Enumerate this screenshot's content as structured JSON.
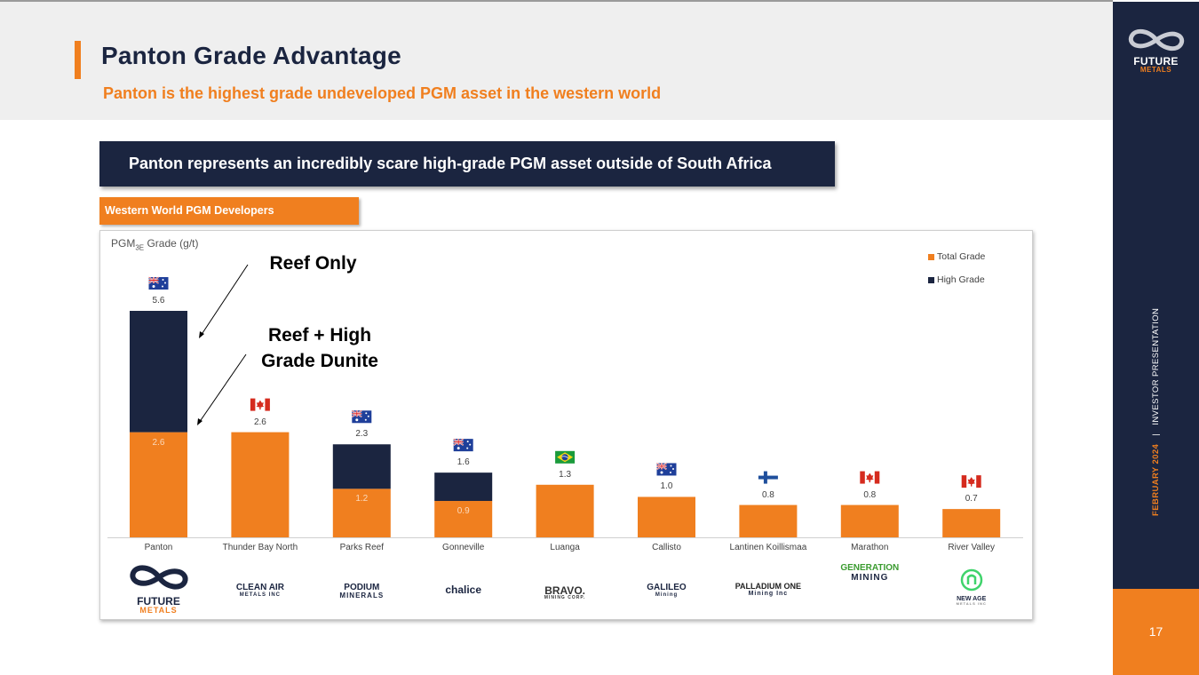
{
  "header": {
    "title": "Panton Grade Advantage",
    "subtitle": "Panton is the highest grade undeveloped PGM asset in the western world"
  },
  "sidebar": {
    "logo_line1": "FUTURE",
    "logo_line2": "METALS",
    "date": "FEBRUARY 2024",
    "separator": "|",
    "doc_type": "INVESTOR PRESENTATION",
    "page_number": "17"
  },
  "banner": {
    "text": "Panton represents an incredibly scare high-grade PGM asset outside of South Africa"
  },
  "section_tab": {
    "text": "Western World PGM Developers"
  },
  "annotations": {
    "reef_only": "Reef Only",
    "reef_high_line1": "Reef + High",
    "reef_high_line2": "Grade Dunite"
  },
  "colors": {
    "navy": "#1b2540",
    "orange": "#f07f1f",
    "grey_band": "#efefef"
  },
  "chart_data": {
    "type": "bar",
    "stacked": true,
    "ylabel_main": "PGM",
    "ylabel_sub": "3E",
    "ylabel_unit": " Grade (g/t)",
    "ylim": [
      0,
      6
    ],
    "grid": false,
    "legend_position": "top-right",
    "categories": [
      "Panton",
      "Thunder Bay North",
      "Parks Reef",
      "Gonneville",
      "Luanga",
      "Callisto",
      "Lantinen Koillismaa",
      "Marathon",
      "River Valley"
    ],
    "totals": [
      5.6,
      2.6,
      2.3,
      1.6,
      1.3,
      1.0,
      0.8,
      0.8,
      0.7
    ],
    "total_labels": [
      "5.6",
      "2.6",
      "2.3",
      "1.6",
      "1.3",
      "1.0",
      "0.8",
      "0.8",
      "0.7"
    ],
    "series": [
      {
        "name": "Total Grade",
        "color": "#f07f1f",
        "values": [
          2.6,
          2.6,
          1.2,
          0.9,
          1.3,
          1.0,
          0.8,
          0.8,
          0.7
        ],
        "labels": [
          "2.6",
          "",
          "1.2",
          "0.9",
          "",
          "",
          "",
          "",
          ""
        ]
      },
      {
        "name": "High Grade",
        "color": "#1b2540",
        "values": [
          3.0,
          0,
          1.1,
          0.7,
          0,
          0,
          0,
          0,
          0
        ]
      }
    ],
    "flags": [
      "australia",
      "canada",
      "australia",
      "australia",
      "brazil",
      "australia",
      "finland",
      "canada",
      "canada"
    ],
    "company_logos": [
      {
        "icon": "infinity-icon",
        "line1": "FUTURE",
        "line2": "METALS"
      },
      {
        "icon": "clean-air-icon",
        "line1": "CLEAN AIR",
        "line2": "METALS INC"
      },
      {
        "icon": "podium-icon",
        "line1": "PODIUM",
        "line2": "MINERALS"
      },
      {
        "icon": "chalice-icon",
        "line1": "chalice",
        "line2": ""
      },
      {
        "icon": "bravo-icon",
        "line1": "BRAVO.",
        "line2": "MINING CORP."
      },
      {
        "icon": "galileo-icon",
        "line1": "GALILEO",
        "line2": "Mining"
      },
      {
        "icon": "palladium-icon",
        "line1": "PALLADIUM ONE",
        "line2": "Mining Inc"
      },
      {
        "icon": "generation-icon",
        "line1": "GENERATION",
        "line2": "MINING"
      },
      {
        "icon": "new-age-icon",
        "line1": "NEW AGE",
        "line2": "METALS INC"
      }
    ]
  }
}
